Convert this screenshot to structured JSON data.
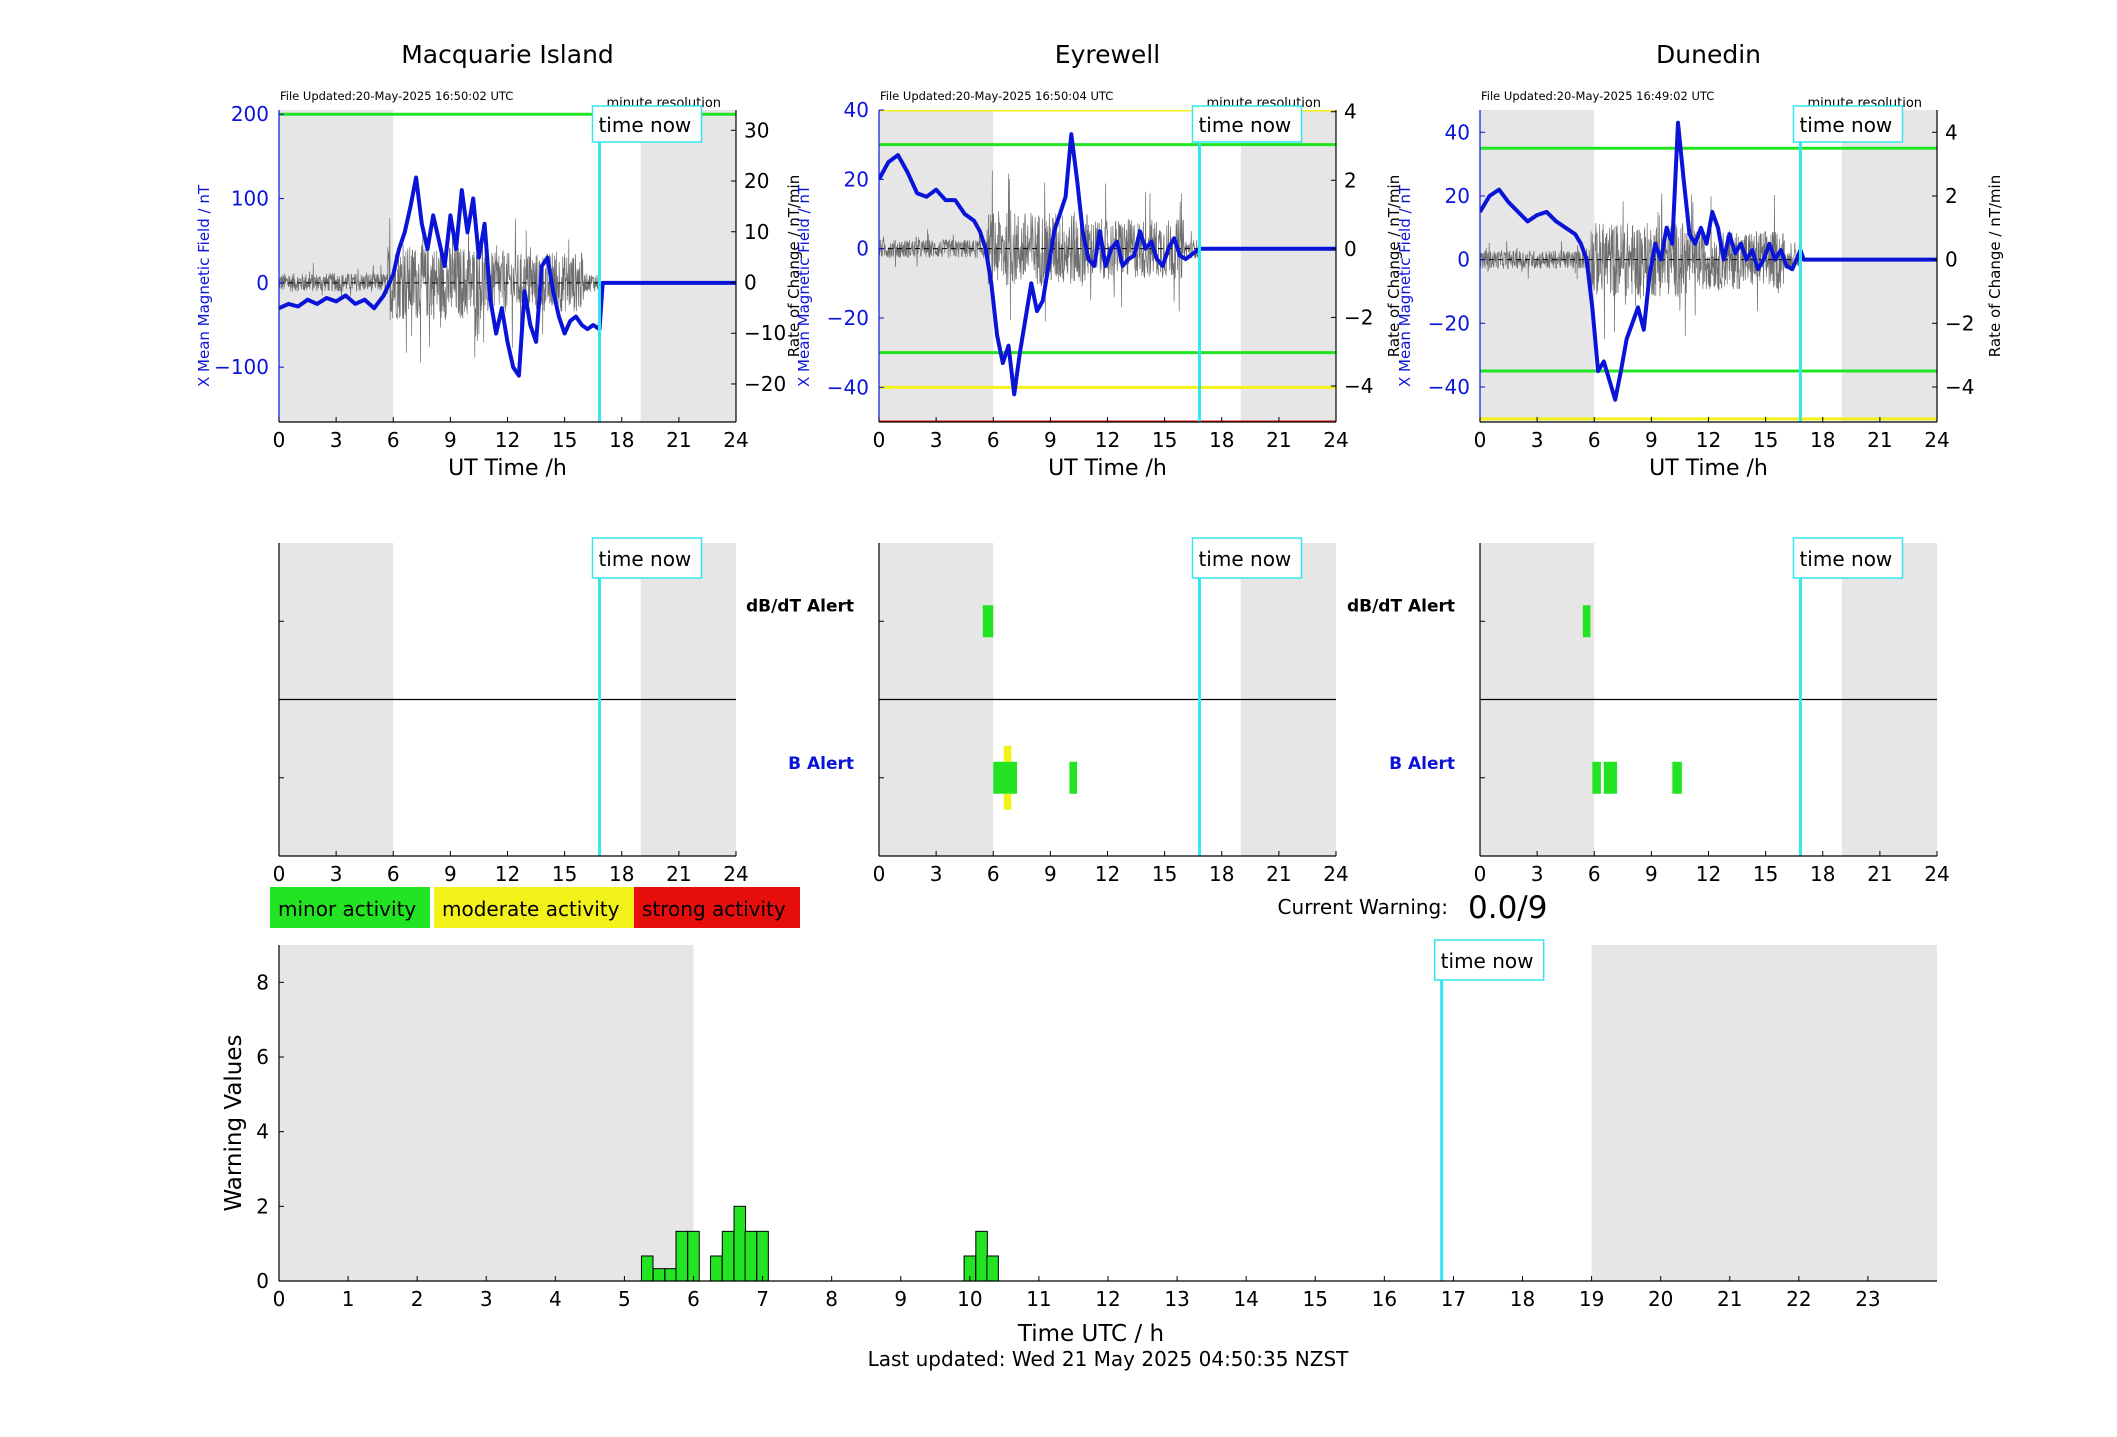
{
  "colors": {
    "blue": "#0a14d9",
    "cyan": "#33e6ef",
    "green": "#22e422",
    "yellow": "#f2f21a",
    "red": "#e60d0d",
    "night_shading": "#e6e6e6",
    "rate_trace": "#6e6e6e"
  },
  "axis_labels": {
    "x_top": "UT Time /h",
    "y_left": "X Mean Magnetic Field / nT",
    "y_right": "Rate of Change / nT/min",
    "time_now": "time now",
    "file_prefix": "File Updated:",
    "resolution": "minute resolution",
    "dbdt_alert": "dB/dT Alert",
    "b_alert": "B Alert"
  },
  "legend": {
    "minor": "minor activity",
    "moderate": "moderate activity",
    "strong": "strong activity"
  },
  "current_warning": {
    "label": "Current Warning:",
    "value": "0.0/9"
  },
  "footer": {
    "last_updated": "Last updated: Wed 21 May 2025 04:50:35 NZST"
  },
  "chart_data": [
    {
      "type": "line",
      "title": "Macquarie Island",
      "file_updated": "20-May-2025 16:50:02 UTC",
      "xlabel": "UT Time /h",
      "ylabel": "X Mean Magnetic Field / nT",
      "ylabel_right": "Rate of Change / nT/min",
      "xlim": [
        0,
        24
      ],
      "xticks": [
        0,
        3,
        6,
        9,
        12,
        15,
        18,
        21,
        24
      ],
      "ylim": [
        -165,
        205
      ],
      "yticks": [
        -100,
        0,
        100,
        200
      ],
      "ylim_right": [
        -27.5,
        34
      ],
      "yticks_right": [
        -20,
        -10,
        0,
        10,
        20,
        30
      ],
      "time_now": 16.83,
      "night_shading": [
        [
          0,
          6
        ],
        [
          19,
          24
        ]
      ],
      "thresholds": [
        {
          "value": 200,
          "color": "green"
        }
      ],
      "series": [
        {
          "axis": "left",
          "x": [
            0,
            0.5,
            1,
            1.5,
            2,
            2.5,
            3,
            3.5,
            4,
            4.5,
            5,
            5.5,
            6,
            6.3,
            6.6,
            6.9,
            7.2,
            7.5,
            7.8,
            8.1,
            8.4,
            8.7,
            9,
            9.3,
            9.6,
            9.9,
            10.2,
            10.5,
            10.8,
            11.1,
            11.4,
            11.7,
            12,
            12.3,
            12.6,
            12.9,
            13.2,
            13.5,
            13.8,
            14.1,
            14.4,
            14.7,
            15,
            15.3,
            15.6,
            15.9,
            16.2,
            16.5,
            16.83,
            17,
            18,
            19,
            20,
            21,
            22,
            23,
            24
          ],
          "y": [
            -30,
            -25,
            -28,
            -20,
            -25,
            -18,
            -22,
            -15,
            -25,
            -20,
            -30,
            -15,
            10,
            40,
            60,
            90,
            125,
            70,
            40,
            80,
            50,
            20,
            80,
            40,
            110,
            60,
            100,
            30,
            70,
            -20,
            -60,
            -30,
            -70,
            -100,
            -110,
            -10,
            -50,
            -70,
            20,
            30,
            -10,
            -40,
            -60,
            -45,
            -40,
            -50,
            -55,
            -50,
            -55,
            0,
            0,
            0,
            0,
            0,
            0,
            0,
            0
          ]
        }
      ]
    },
    {
      "type": "line",
      "title": "Eyrewell",
      "file_updated": "20-May-2025 16:50:04 UTC",
      "xlabel": "UT Time /h",
      "ylabel": "X Mean Magnetic Field / nT",
      "ylabel_right": "Rate of Change / nT/min",
      "xlim": [
        0,
        24
      ],
      "xticks": [
        0,
        3,
        6,
        9,
        12,
        15,
        18,
        21,
        24
      ],
      "ylim": [
        -50,
        40
      ],
      "yticks": [
        -40,
        -20,
        0,
        20,
        40
      ],
      "ylim_right": [
        -5.05,
        4.05
      ],
      "yticks_right": [
        -4,
        -2,
        0,
        2,
        4
      ],
      "time_now": 16.83,
      "night_shading": [
        [
          0,
          6
        ],
        [
          19,
          24
        ]
      ],
      "thresholds": [
        {
          "value": 40,
          "color": "yellow"
        },
        {
          "value": 30,
          "color": "green"
        },
        {
          "value": -30,
          "color": "green"
        },
        {
          "value": -40,
          "color": "yellow"
        },
        {
          "value": -50,
          "color": "red"
        }
      ],
      "series": [
        {
          "axis": "left",
          "x": [
            0,
            0.5,
            1,
            1.5,
            2,
            2.5,
            3,
            3.5,
            4,
            4.5,
            5,
            5.3,
            5.6,
            5.9,
            6.2,
            6.5,
            6.8,
            7.1,
            7.4,
            7.7,
            8,
            8.3,
            8.6,
            8.9,
            9.2,
            9.5,
            9.8,
            10.1,
            10.4,
            10.7,
            11,
            11.3,
            11.6,
            11.9,
            12.2,
            12.5,
            12.8,
            13.1,
            13.4,
            13.7,
            14,
            14.3,
            14.6,
            14.9,
            15.2,
            15.5,
            15.8,
            16.1,
            16.83,
            17,
            18,
            19,
            20,
            21,
            22,
            23,
            24
          ],
          "y": [
            20,
            25,
            27,
            22,
            16,
            15,
            17,
            14,
            14,
            10,
            8,
            5,
            0,
            -10,
            -25,
            -33,
            -28,
            -42,
            -30,
            -20,
            -10,
            -18,
            -15,
            -5,
            5,
            10,
            15,
            33,
            20,
            5,
            -3,
            -5,
            5,
            -5,
            0,
            2,
            -5,
            -3,
            -2,
            5,
            0,
            2,
            -3,
            -5,
            0,
            3,
            -2,
            -3,
            0,
            0,
            0,
            0,
            0,
            0,
            0,
            0,
            0
          ]
        }
      ]
    },
    {
      "type": "line",
      "title": "Dunedin",
      "file_updated": "20-May-2025 16:49:02 UTC",
      "xlabel": "UT Time /h",
      "ylabel": "X Mean Magnetic Field / nT",
      "ylabel_right": "Rate of Change / nT/min",
      "xlim": [
        0,
        24
      ],
      "xticks": [
        0,
        3,
        6,
        9,
        12,
        15,
        18,
        21,
        24
      ],
      "ylim": [
        -51,
        47
      ],
      "yticks": [
        -40,
        -20,
        0,
        20,
        40
      ],
      "ylim_right": [
        -5.1,
        4.7
      ],
      "yticks_right": [
        -4,
        -2,
        0,
        2,
        4
      ],
      "time_now": 16.83,
      "night_shading": [
        [
          0,
          6
        ],
        [
          19,
          24
        ]
      ],
      "thresholds": [
        {
          "value": 35,
          "color": "green"
        },
        {
          "value": -35,
          "color": "green"
        },
        {
          "value": -50,
          "color": "yellow"
        }
      ],
      "series": [
        {
          "axis": "left",
          "x": [
            0,
            0.5,
            1,
            1.5,
            2,
            2.5,
            3,
            3.5,
            4,
            4.5,
            5,
            5.3,
            5.6,
            5.9,
            6.2,
            6.5,
            6.8,
            7.1,
            7.4,
            7.7,
            8,
            8.3,
            8.6,
            8.9,
            9.2,
            9.5,
            9.8,
            10.1,
            10.4,
            10.7,
            11,
            11.3,
            11.6,
            11.9,
            12.2,
            12.5,
            12.8,
            13.1,
            13.4,
            13.7,
            14,
            14.3,
            14.6,
            14.9,
            15.2,
            15.5,
            15.8,
            16.1,
            16.4,
            16.83,
            17,
            18,
            19,
            20,
            21,
            22,
            23,
            24
          ],
          "y": [
            15,
            20,
            22,
            18,
            15,
            12,
            14,
            15,
            12,
            10,
            8,
            5,
            0,
            -15,
            -35,
            -32,
            -38,
            -44,
            -35,
            -25,
            -20,
            -15,
            -22,
            -5,
            5,
            0,
            10,
            5,
            43,
            25,
            8,
            5,
            10,
            5,
            15,
            10,
            0,
            8,
            2,
            5,
            0,
            3,
            -3,
            0,
            5,
            0,
            3,
            -2,
            -3,
            3,
            0,
            0,
            0,
            0,
            0,
            0,
            0,
            0
          ]
        }
      ]
    },
    {
      "type": "bar",
      "title": "",
      "xlabel": "Time UTC / h",
      "ylabel": "Warning Values",
      "xlim": [
        0,
        24
      ],
      "xticks": [
        0,
        1,
        2,
        3,
        4,
        5,
        6,
        7,
        8,
        9,
        10,
        11,
        12,
        13,
        14,
        15,
        16,
        17,
        18,
        19,
        20,
        21,
        22,
        23
      ],
      "ylim": [
        0,
        9
      ],
      "yticks": [
        0,
        2,
        4,
        6,
        8
      ],
      "time_now": 16.83,
      "night_shading": [
        [
          0,
          6
        ],
        [
          19,
          24
        ]
      ],
      "bin_width": 0.1667,
      "bars": [
        {
          "x": 5.33,
          "value": 0.67
        },
        {
          "x": 5.5,
          "value": 0.33
        },
        {
          "x": 5.67,
          "value": 0.33
        },
        {
          "x": 5.83,
          "value": 1.33
        },
        {
          "x": 6.0,
          "value": 1.33
        },
        {
          "x": 6.33,
          "value": 0.67
        },
        {
          "x": 6.5,
          "value": 1.33
        },
        {
          "x": 6.67,
          "value": 2.0
        },
        {
          "x": 6.83,
          "value": 1.33
        },
        {
          "x": 7.0,
          "value": 1.33
        },
        {
          "x": 10.0,
          "value": 0.67
        },
        {
          "x": 10.17,
          "value": 1.33
        },
        {
          "x": 10.33,
          "value": 0.67
        }
      ]
    }
  ],
  "alerts": [
    {
      "station": "Macquarie Island",
      "dbdt": [],
      "b": []
    },
    {
      "station": "Eyrewell",
      "dbdt": [
        {
          "start": 5.45,
          "end": 6.0,
          "level": "minor"
        }
      ],
      "b": [
        {
          "start": 6.0,
          "end": 7.25,
          "level": "minor"
        },
        {
          "start": 6.55,
          "end": 6.95,
          "level": "moderate"
        },
        {
          "start": 10.0,
          "end": 10.4,
          "level": "minor"
        }
      ]
    },
    {
      "station": "Dunedin",
      "dbdt": [
        {
          "start": 5.4,
          "end": 5.8,
          "level": "minor"
        }
      ],
      "b": [
        {
          "start": 5.9,
          "end": 6.35,
          "level": "minor"
        },
        {
          "start": 6.5,
          "end": 7.2,
          "level": "minor"
        },
        {
          "start": 10.1,
          "end": 10.6,
          "level": "minor"
        }
      ]
    }
  ]
}
